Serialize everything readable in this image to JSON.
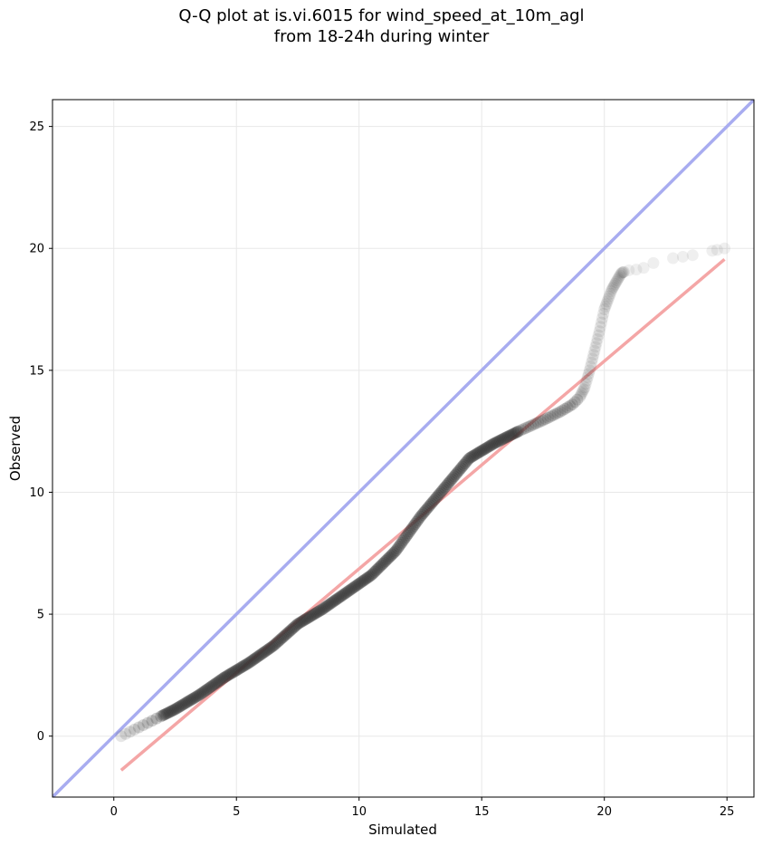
{
  "chart_data": {
    "type": "scatter",
    "title_line1": "Q-Q plot at is.vi.6015 for wind_speed_at_10m_agl",
    "title_line2": "from 18-24h during winter",
    "xlabel": "Simulated",
    "ylabel": "Observed",
    "xlim": [
      -2.5,
      26.1
    ],
    "ylim": [
      -2.5,
      26.1
    ],
    "xticks": [
      0,
      5,
      10,
      15,
      20,
      25
    ],
    "yticks": [
      0,
      5,
      10,
      15,
      20,
      25
    ],
    "grid": true,
    "colors": {
      "points": "#333333",
      "identity_line": "#a8acf0",
      "fit_line": "#f4a6a6"
    },
    "identity_line": {
      "x": [
        -2.5,
        26.1
      ],
      "y": [
        -2.5,
        26.1
      ]
    },
    "fit_line": {
      "x": [
        0.3,
        24.9
      ],
      "y": [
        -1.4,
        19.55
      ]
    },
    "quantile_curve": {
      "x": [
        0.3,
        0.8,
        1.5,
        2.5,
        3.5,
        4.5,
        5.5,
        6.5,
        7.5,
        8.5,
        9.5,
        10.5,
        11.5,
        12.5,
        13.5,
        14.5,
        15.5,
        16.5,
        17.5,
        18.2,
        18.7,
        19.0,
        19.2,
        19.4,
        19.6,
        19.8,
        20.0,
        20.3,
        20.7,
        21.0,
        21.5,
        22.0,
        22.8,
        23.5,
        24.4,
        24.9
      ],
      "y": [
        0.0,
        0.25,
        0.6,
        1.1,
        1.7,
        2.4,
        3.0,
        3.7,
        4.6,
        5.2,
        5.9,
        6.6,
        7.6,
        9.0,
        10.2,
        11.4,
        12.0,
        12.5,
        12.95,
        13.3,
        13.6,
        13.9,
        14.3,
        15.0,
        15.8,
        16.6,
        17.5,
        18.3,
        19.0,
        19.1,
        19.15,
        19.4,
        19.6,
        19.7,
        19.9,
        20.0
      ]
    }
  }
}
